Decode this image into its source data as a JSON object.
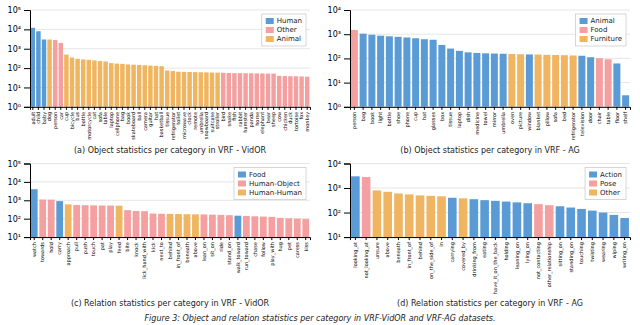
{
  "chart_data": [
    {
      "type": "bar",
      "log": "y",
      "grid": true,
      "legend": "top-right",
      "xlabel": "(a) Object statistics per category in VRF - VidOR",
      "categories": [
        "adult",
        "child",
        "baby",
        "dog",
        "person",
        "car",
        "cup",
        "bicycle",
        "bus",
        "bottle",
        "motorcycle",
        "cat",
        "sofa",
        "table",
        "laptop",
        "cellphone",
        "bag",
        "book",
        "skateboard",
        "ball",
        "camera",
        "guitar",
        "hat",
        "basketball",
        "tissue",
        "refrigerator",
        "toilet",
        "microwave",
        "clock",
        "remote",
        "umbrella",
        "snowboard",
        "suitcase",
        "stroller",
        "bird",
        "snake",
        "fish",
        "rabbit",
        "hamster",
        "panda",
        "horse",
        "elephant",
        "bear",
        "sheep",
        "cow",
        "chicken",
        "duck",
        "tortoise",
        "fox",
        "monkey"
      ],
      "values": [
        12000,
        8000,
        3000,
        3000,
        2800,
        2000,
        500,
        350,
        300,
        280,
        270,
        250,
        230,
        220,
        180,
        170,
        165,
        155,
        150,
        145,
        140,
        135,
        130,
        125,
        75,
        70,
        65,
        64,
        63,
        62,
        61,
        60,
        59,
        58,
        57,
        56,
        55,
        55,
        54,
        54,
        53,
        53,
        52,
        52,
        40,
        39,
        38,
        38,
        37,
        36
      ],
      "colors": [
        "#5b9bd5",
        "#5b9bd5",
        "#5b9bd5",
        "#f0b560",
        "#f4a0a0",
        "#f4a0a0",
        "#f0b560",
        "#f0b560",
        "#f0b560",
        "#f0b560",
        "#f0b560",
        "#f0b560",
        "#f0b560",
        "#f0b560",
        "#f0b560",
        "#f0b560",
        "#f0b560",
        "#f0b560",
        "#f0b560",
        "#f0b560",
        "#f0b560",
        "#f0b560",
        "#f0b560",
        "#f0b560",
        "#f0b560",
        "#f0b560",
        "#f0b560",
        "#f0b560",
        "#f0b560",
        "#f0b560",
        "#f0b560",
        "#f0b560",
        "#f0b560",
        "#f0b560",
        "#f4a0a0",
        "#f4a0a0",
        "#f4a0a0",
        "#f4a0a0",
        "#f4a0a0",
        "#f4a0a0",
        "#f4a0a0",
        "#f4a0a0",
        "#f4a0a0",
        "#f4a0a0",
        "#f4a0a0",
        "#f4a0a0",
        "#f4a0a0",
        "#f4a0a0",
        "#f4a0a0",
        "#f4a0a0"
      ],
      "ylim": [
        1.0,
        100000.0
      ],
      "yticks": [
        {
          "value": 1,
          "label": "10⁰"
        },
        {
          "value": 10,
          "label": "10¹"
        },
        {
          "value": 100,
          "label": "10²"
        },
        {
          "value": 1000,
          "label": "10³"
        },
        {
          "value": 10000,
          "label": "10⁴"
        },
        {
          "value": 100000,
          "label": "10⁵"
        }
      ],
      "legend_labels": [
        "Human",
        "Other",
        "Animal"
      ],
      "legend_colors": [
        "#5b9bd5",
        "#f4a0a0",
        "#f0b560"
      ]
    },
    {
      "type": "bar",
      "log": "y",
      "grid": true,
      "legend": "top-right",
      "xlabel": "(b) Object statistics per category in VRF - AG",
      "categories": [
        "person",
        "bag",
        "book",
        "light",
        "bottle",
        "shoe",
        "phone",
        "cup",
        "hat",
        "glasses",
        "box",
        "tissue",
        "laptop",
        "dish",
        "medicine",
        "towel",
        "mirror",
        "umbrella",
        "oven",
        "picture",
        "window",
        "blanket",
        "pillow",
        "sofa",
        "bed",
        "refrigerator",
        "television",
        "door",
        "chair",
        "table",
        "floor",
        "shelf"
      ],
      "values": [
        1500,
        1050,
        950,
        870,
        820,
        780,
        730,
        680,
        620,
        590,
        360,
        255,
        205,
        178,
        168,
        162,
        159,
        156,
        152,
        149,
        146,
        144,
        141,
        139,
        136,
        132,
        129,
        112,
        102,
        92,
        62,
        3
      ],
      "colors": [
        "#f4a0a0",
        "#5b9bd5",
        "#5b9bd5",
        "#5b9bd5",
        "#5b9bd5",
        "#5b9bd5",
        "#5b9bd5",
        "#5b9bd5",
        "#5b9bd5",
        "#5b9bd5",
        "#5b9bd5",
        "#5b9bd5",
        "#5b9bd5",
        "#5b9bd5",
        "#5b9bd5",
        "#5b9bd5",
        "#5b9bd5",
        "#5b9bd5",
        "#f0b560",
        "#f0b560",
        "#5b9bd5",
        "#f0b560",
        "#f0b560",
        "#f0b560",
        "#f0b560",
        "#f0b560",
        "#5b9bd5",
        "#5b9bd5",
        "#f4a0a0",
        "#f4a0a0",
        "#5b9bd5",
        "#5b9bd5"
      ],
      "ylim": [
        1.0,
        10000.0
      ],
      "yticks": [
        {
          "value": 1,
          "label": "10⁰"
        },
        {
          "value": 10,
          "label": "10¹"
        },
        {
          "value": 100,
          "label": "10²"
        },
        {
          "value": 1000,
          "label": "10³"
        },
        {
          "value": 10000,
          "label": "10⁴"
        }
      ],
      "legend_labels": [
        "Animal",
        "Food",
        "Furniture"
      ],
      "legend_colors": [
        "#5b9bd5",
        "#f4a0a0",
        "#f0b560"
      ]
    },
    {
      "type": "bar",
      "log": "y",
      "grid": true,
      "legend": "top-right",
      "xlabel": "(c) Relation statistics per category in VRF - VidOR",
      "categories": [
        "watch",
        "towards",
        "hold",
        "carry",
        "approach",
        "pull",
        "push",
        "touch",
        "pat",
        "play",
        "feed",
        "bite",
        "knock",
        "lick_hand_with",
        "kick",
        "next_to",
        "behind",
        "in_front_of",
        "beneath",
        "above",
        "lean_on",
        "sit_on",
        "ride",
        "stand_on",
        "walk_toward",
        "run_toward",
        "chase",
        "follow",
        "play_with",
        "hug",
        "pet",
        "caress",
        "kiss"
      ],
      "values": [
        4000,
        1100,
        1080,
        900,
        600,
        550,
        540,
        530,
        520,
        515,
        510,
        290,
        260,
        255,
        190,
        185,
        182,
        178,
        175,
        172,
        170,
        165,
        160,
        155,
        145,
        140,
        135,
        130,
        125,
        110,
        105,
        100,
        95
      ],
      "colors": [
        "#5b9bd5",
        "#f4a0a0",
        "#f4a0a0",
        "#5b9bd5",
        "#f0b560",
        "#f4a0a0",
        "#f4a0a0",
        "#f4a0a0",
        "#f4a0a0",
        "#f4a0a0",
        "#f0b560",
        "#f4a0a0",
        "#f4a0a0",
        "#f4a0a0",
        "#f4a0a0",
        "#f4a0a0",
        "#f0b560",
        "#f0b560",
        "#f0b560",
        "#f0b560",
        "#f4a0a0",
        "#f4a0a0",
        "#f4a0a0",
        "#f4a0a0",
        "#5b9bd5",
        "#f4a0a0",
        "#f4a0a0",
        "#f4a0a0",
        "#f4a0a0",
        "#f4a0a0",
        "#f4a0a0",
        "#f4a0a0",
        "#f4a0a0"
      ],
      "ylim": [
        10.0,
        100000.0
      ],
      "yticks": [
        {
          "value": 10,
          "label": "10¹"
        },
        {
          "value": 100,
          "label": "10²"
        },
        {
          "value": 1000,
          "label": "10³"
        },
        {
          "value": 10000,
          "label": "10⁴"
        },
        {
          "value": 100000,
          "label": "10⁵"
        }
      ],
      "legend_labels": [
        "Food",
        "Human-Object",
        "Human-Human"
      ],
      "legend_colors": [
        "#5b9bd5",
        "#f4a0a0",
        "#f0b560"
      ]
    },
    {
      "type": "bar",
      "log": "y",
      "grid": true,
      "legend": "top-right",
      "xlabel": "(d) Relation statistics per category in VRF - AG",
      "categories": [
        "looking_at",
        "not_looking_at",
        "unsure",
        "above",
        "beneath",
        "in_front_of",
        "behind",
        "on_the_side_of",
        "in",
        "carrying",
        "covered_by",
        "drinking_from",
        "eating",
        "have_it_on_the_back",
        "holding",
        "leaning_on",
        "lying_on",
        "not_contacting",
        "other_relationship",
        "sitting_on",
        "standing_on",
        "touching",
        "twisting",
        "wearing",
        "wiping",
        "writing_on"
      ],
      "values": [
        3000,
        2800,
        800,
        700,
        600,
        550,
        500,
        480,
        460,
        400,
        380,
        350,
        320,
        300,
        280,
        260,
        240,
        220,
        200,
        180,
        160,
        140,
        120,
        100,
        80,
        60
      ],
      "colors": [
        "#5b9bd5",
        "#f4a0a0",
        "#f0b560",
        "#f0b560",
        "#f0b560",
        "#f0b560",
        "#f0b560",
        "#f0b560",
        "#f0b560",
        "#5b9bd5",
        "#f0b560",
        "#5b9bd5",
        "#5b9bd5",
        "#5b9bd5",
        "#5b9bd5",
        "#5b9bd5",
        "#5b9bd5",
        "#f4a0a0",
        "#f4a0a0",
        "#5b9bd5",
        "#5b9bd5",
        "#5b9bd5",
        "#5b9bd5",
        "#5b9bd5",
        "#5b9bd5",
        "#5b9bd5"
      ],
      "ylim": [
        10.0,
        10000.0
      ],
      "yticks": [
        {
          "value": 10,
          "label": "10¹"
        },
        {
          "value": 100,
          "label": "10²"
        },
        {
          "value": 1000,
          "label": "10³"
        },
        {
          "value": 10000,
          "label": "10⁴"
        }
      ],
      "legend_labels": [
        "Action",
        "Pose",
        "Other"
      ],
      "legend_colors": [
        "#5b9bd5",
        "#f4a0a0",
        "#f0b560"
      ]
    }
  ],
  "caption": "Figure 3: Object and relation statistics per category in VRF-VidOR and VRF-AG datasets."
}
